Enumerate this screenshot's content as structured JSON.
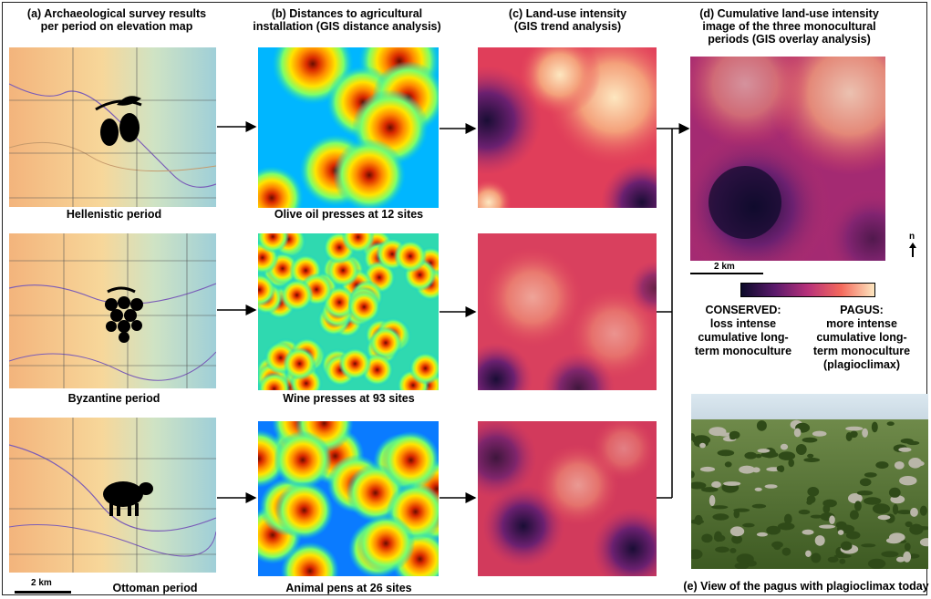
{
  "headers": {
    "a_line1": "(a) Archaeological survey results",
    "a_line2": "per period on elevation map",
    "b_line1": "(b) Distances to agricultural",
    "b_line2": "installation (GIS distance analysis)",
    "c_line1": "(c) Land-use intensity",
    "c_line2": "(GIS trend analysis)",
    "d_line1": "(d) Cumulative land-use intensity",
    "d_line2": "image of the three monocultural",
    "d_line3": "periods (GIS overlay analysis)"
  },
  "rows": [
    {
      "period": "Hellenistic period",
      "distance_caption": "Olive oil presses at 12 sites",
      "icon": "olive-icon"
    },
    {
      "period": "Byzantine period",
      "distance_caption": "Wine presses at 93 sites",
      "icon": "grapes-icon"
    },
    {
      "period": "Ottoman period",
      "distance_caption": "Animal pens at 26 sites",
      "icon": "sheep-icon"
    }
  ],
  "scale_label_small": "2 km",
  "scale_label_big": "2 km",
  "north_label": "n",
  "legend": {
    "left_title": "CONSERVED:",
    "left_l1": "loss intense",
    "left_l2": "cumulative long-",
    "left_l3": "term monoculture",
    "right_title": "PAGUS:",
    "right_l1": "more intense",
    "right_l2": "cumulative long-",
    "right_l3": "term monoculture",
    "right_l4": "(plagioclimax)"
  },
  "photo_caption": "(e) View of the pagus with plagioclimax today",
  "colors": {
    "magma_dark": "#0c0a2a",
    "magma_purple": "#7a1f6e",
    "magma_red": "#d9434b",
    "magma_light": "#fde7c0"
  }
}
